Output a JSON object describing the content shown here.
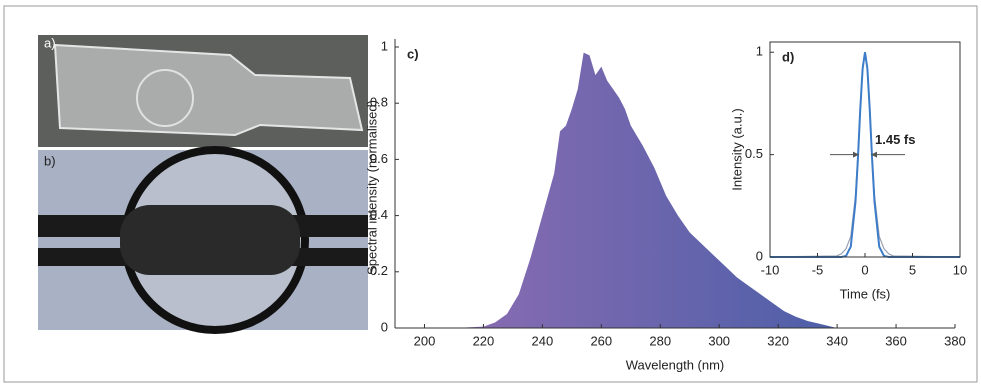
{
  "photos": [
    {
      "label": "a)"
    },
    {
      "label": "b)"
    }
  ],
  "chart_data": [
    {
      "type": "area",
      "panel_label": "c)",
      "x_label": "Wavelength (nm)",
      "y_label": "Spectral intensity (normalised)",
      "x": [
        200,
        210,
        220,
        224,
        228,
        232,
        236,
        240,
        244,
        246,
        248,
        250,
        252,
        254,
        256,
        258,
        260,
        262,
        264,
        266,
        268,
        270,
        274,
        278,
        282,
        286,
        290,
        294,
        298,
        302,
        306,
        310,
        314,
        318,
        322,
        326,
        330,
        334,
        338,
        340
      ],
      "values": [
        0,
        0,
        0.005,
        0.02,
        0.05,
        0.12,
        0.25,
        0.4,
        0.55,
        0.7,
        0.72,
        0.78,
        0.85,
        0.98,
        0.97,
        0.9,
        0.93,
        0.88,
        0.85,
        0.82,
        0.78,
        0.72,
        0.65,
        0.57,
        0.47,
        0.4,
        0.34,
        0.3,
        0.26,
        0.22,
        0.18,
        0.15,
        0.12,
        0.09,
        0.06,
        0.04,
        0.025,
        0.015,
        0.005,
        0
      ],
      "gradient": [
        "#8f6db3",
        "#4d5fa8"
      ],
      "xlim": [
        190,
        380
      ],
      "ylim": [
        0,
        1
      ],
      "xticks": [
        200,
        220,
        240,
        260,
        280,
        300,
        320,
        340,
        360,
        380
      ],
      "yticks": [
        0,
        0.2,
        0.4,
        0.6,
        0.8,
        1
      ]
    },
    {
      "type": "line",
      "panel_label": "d)",
      "annotation": "1.45 fs",
      "x_label": "Time (fs)",
      "y_label": "Intensity (a.u.)",
      "x": [
        -10,
        -3,
        -2.5,
        -2,
        -1.5,
        -1,
        -0.75,
        -0.5,
        -0.25,
        0,
        0.25,
        0.5,
        0.75,
        1,
        1.5,
        2,
        2.5,
        3,
        10
      ],
      "series": [
        {
          "color": "#9aa0b0",
          "values": [
            0,
            0.005,
            0.015,
            0.04,
            0.1,
            0.3,
            0.5,
            0.73,
            0.92,
            1,
            0.92,
            0.73,
            0.5,
            0.3,
            0.1,
            0.04,
            0.015,
            0.005,
            0
          ]
        },
        {
          "color": "#3d7cc9",
          "values": [
            0,
            0,
            0,
            0.005,
            0.05,
            0.27,
            0.476,
            0.72,
            0.92,
            1,
            0.92,
            0.72,
            0.476,
            0.27,
            0.05,
            0.005,
            0,
            0,
            0
          ]
        }
      ],
      "xlim": [
        -10,
        10
      ],
      "ylim": [
        0,
        1.05
      ],
      "xticks": [
        -10,
        -5,
        0,
        5,
        10
      ],
      "yticks": [
        0,
        0.5,
        1
      ]
    }
  ]
}
